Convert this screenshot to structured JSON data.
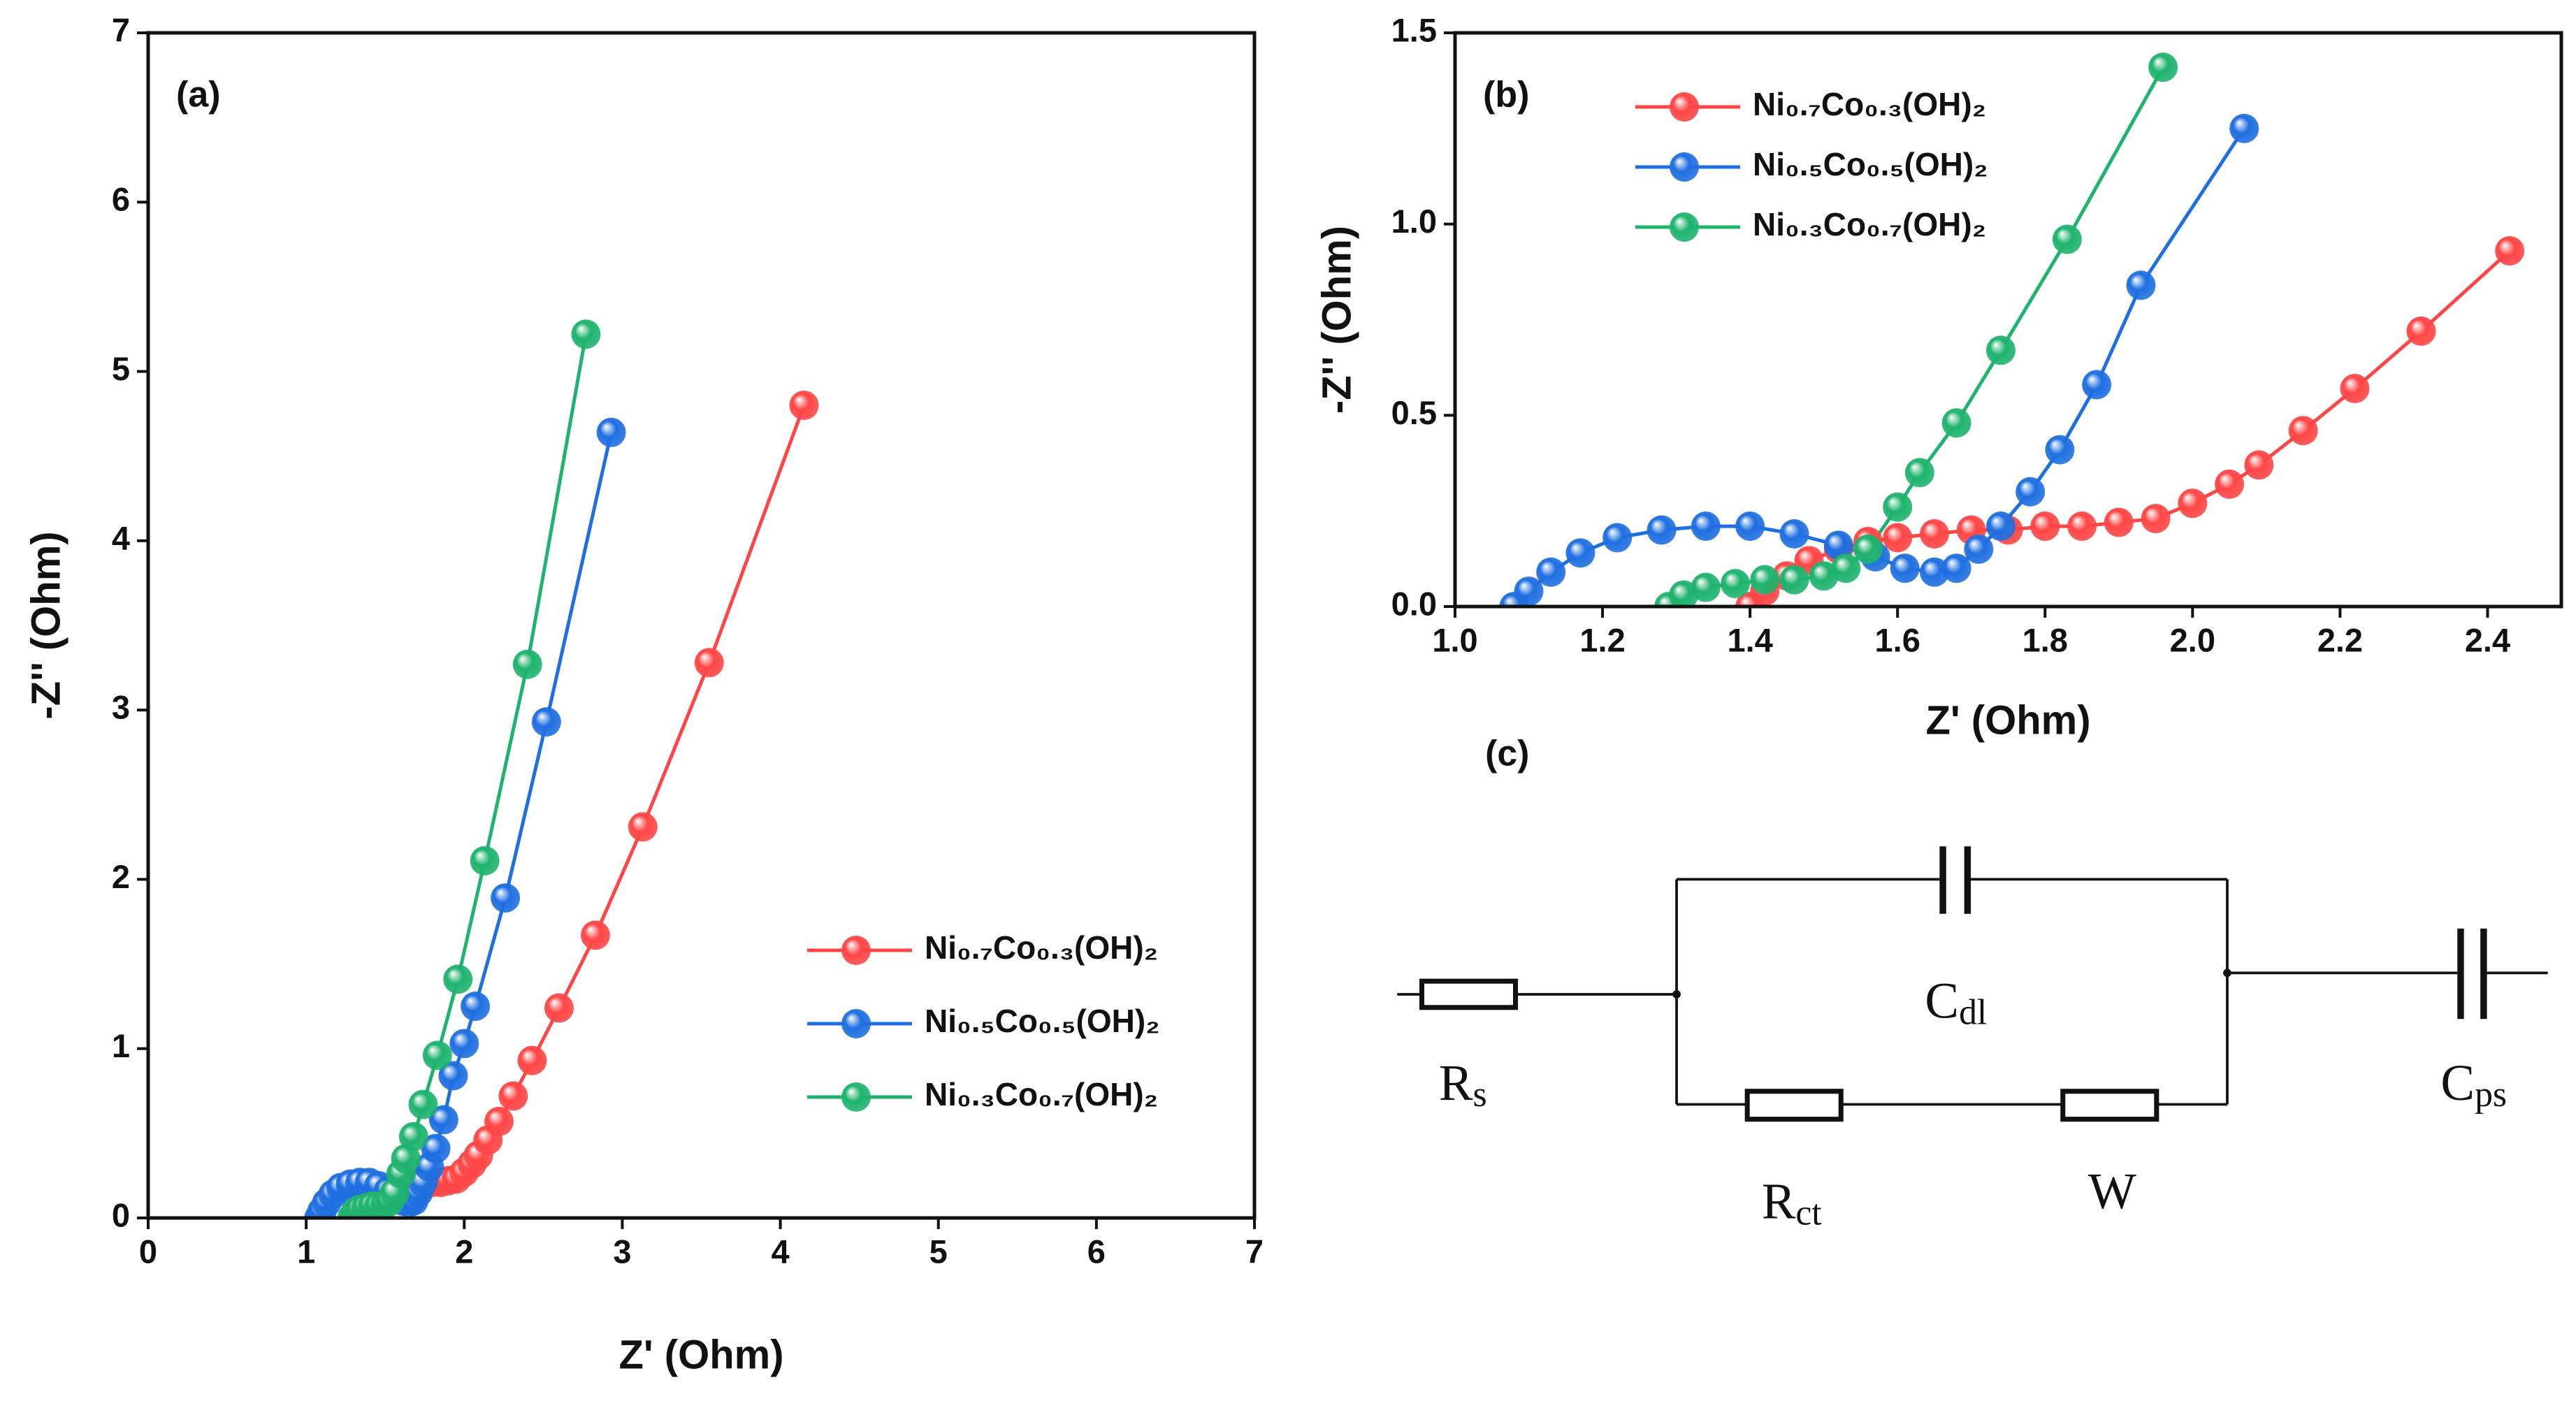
{
  "chart_data": [
    {
      "type": "line",
      "label": "(a)",
      "xlabel": "Z' (Ohm)",
      "ylabel": "-Z'' (Ohm)",
      "xlim": [
        0,
        7
      ],
      "ylim": [
        0,
        7
      ],
      "xticks": [
        0,
        1,
        2,
        3,
        4,
        5,
        6,
        7
      ],
      "yticks": [
        0,
        1,
        2,
        3,
        4,
        5,
        6,
        7
      ],
      "legend": "lower right",
      "series": [
        {
          "name": "Ni₀.₇Co₀.₃(OH)₂",
          "color": "#ff4646",
          "x": [
            1.4,
            1.42,
            1.45,
            1.48,
            1.52,
            1.56,
            1.6,
            1.65,
            1.7,
            1.75,
            1.8,
            1.85,
            1.9,
            1.95,
            2.0,
            2.05,
            2.09,
            2.15,
            2.22,
            2.31,
            2.43,
            2.6,
            2.83,
            3.13,
            3.55,
            4.15
          ],
          "values": [
            0,
            0.04,
            0.08,
            0.12,
            0.15,
            0.17,
            0.18,
            0.19,
            0.2,
            0.2,
            0.21,
            0.21,
            0.22,
            0.23,
            0.27,
            0.32,
            0.37,
            0.46,
            0.57,
            0.72,
            0.93,
            1.24,
            1.67,
            2.31,
            3.28,
            4.8
          ]
        },
        {
          "name": "Ni₀.₅Co₀.₅(OH)₂",
          "color": "#1f6fe0",
          "x": [
            1.08,
            1.1,
            1.13,
            1.17,
            1.22,
            1.28,
            1.34,
            1.4,
            1.46,
            1.52,
            1.57,
            1.61,
            1.65,
            1.68,
            1.71,
            1.74,
            1.78,
            1.82,
            1.87,
            1.93,
            2.0,
            2.07,
            2.26,
            2.52,
            2.93
          ],
          "values": [
            0,
            0.04,
            0.09,
            0.14,
            0.18,
            0.2,
            0.21,
            0.21,
            0.19,
            0.16,
            0.13,
            0.1,
            0.09,
            0.1,
            0.15,
            0.21,
            0.3,
            0.41,
            0.58,
            0.84,
            1.03,
            1.25,
            1.89,
            2.93,
            4.64
          ]
        },
        {
          "name": "Ni₀.₃Co₀.₇(OH)₂",
          "color": "#1fb36e",
          "x": [
            1.29,
            1.31,
            1.34,
            1.38,
            1.42,
            1.46,
            1.5,
            1.53,
            1.56,
            1.6,
            1.63,
            1.68,
            1.74,
            1.83,
            1.96,
            2.13,
            2.4,
            2.77
          ],
          "values": [
            0,
            0.03,
            0.05,
            0.06,
            0.07,
            0.07,
            0.08,
            0.1,
            0.15,
            0.26,
            0.35,
            0.48,
            0.67,
            0.96,
            1.41,
            2.11,
            3.27,
            5.22
          ]
        }
      ]
    },
    {
      "type": "line",
      "label": "(b)",
      "xlabel": "Z' (Ohm)",
      "ylabel": "-Z'' (Ohm)",
      "xlim": [
        1.0,
        2.5
      ],
      "ylim": [
        0,
        1.5
      ],
      "xticks": [
        {
          "value": 1.0,
          "label": "1.0"
        },
        1.2,
        1.4,
        1.6,
        1.8,
        {
          "value": 2.0,
          "label": "2.0"
        },
        2.2,
        2.4
      ],
      "yticks": [
        {
          "value": 0,
          "label": "0.0"
        },
        0.5,
        {
          "value": 1.0,
          "label": "1.0"
        },
        1.5
      ],
      "legend": "upper left",
      "series": [
        {
          "name": "Ni₀.₇Co₀.₃(OH)₂",
          "color": "#ff4646",
          "x": [
            1.4,
            1.42,
            1.45,
            1.48,
            1.52,
            1.56,
            1.6,
            1.65,
            1.7,
            1.75,
            1.8,
            1.85,
            1.9,
            1.95,
            2.0,
            2.05,
            2.09,
            2.15,
            2.22,
            2.31,
            2.43
          ],
          "values": [
            0,
            0.04,
            0.08,
            0.12,
            0.15,
            0.17,
            0.18,
            0.19,
            0.2,
            0.2,
            0.21,
            0.21,
            0.22,
            0.23,
            0.27,
            0.32,
            0.37,
            0.46,
            0.57,
            0.72,
            0.93
          ]
        },
        {
          "name": "Ni₀.₅Co₀.₅(OH)₂",
          "color": "#1f6fe0",
          "x": [
            1.08,
            1.1,
            1.13,
            1.17,
            1.22,
            1.28,
            1.34,
            1.4,
            1.46,
            1.52,
            1.57,
            1.61,
            1.65,
            1.68,
            1.71,
            1.74,
            1.78,
            1.82,
            1.87,
            1.93,
            2.07
          ],
          "values": [
            0,
            0.04,
            0.09,
            0.14,
            0.18,
            0.2,
            0.21,
            0.21,
            0.19,
            0.16,
            0.13,
            0.1,
            0.09,
            0.1,
            0.15,
            0.21,
            0.3,
            0.41,
            0.58,
            0.84,
            1.25
          ]
        },
        {
          "name": "Ni₀.₃Co₀.₇(OH)₂",
          "color": "#1fb36e",
          "x": [
            1.29,
            1.31,
            1.34,
            1.38,
            1.42,
            1.46,
            1.5,
            1.53,
            1.56,
            1.6,
            1.63,
            1.68,
            1.74,
            1.83,
            1.96
          ],
          "values": [
            0,
            0.03,
            0.05,
            0.06,
            0.07,
            0.07,
            0.08,
            0.1,
            0.15,
            0.26,
            0.35,
            0.48,
            0.67,
            0.96,
            1.41
          ]
        }
      ]
    }
  ],
  "circuit": {
    "label": "(c)",
    "elements": [
      {
        "symbol": "R",
        "sub": "s"
      },
      {
        "symbol": "C",
        "sub": "dl"
      },
      {
        "symbol": "R",
        "sub": "ct"
      },
      {
        "symbol": "W"
      },
      {
        "symbol": "C",
        "sub": "ps"
      }
    ]
  }
}
